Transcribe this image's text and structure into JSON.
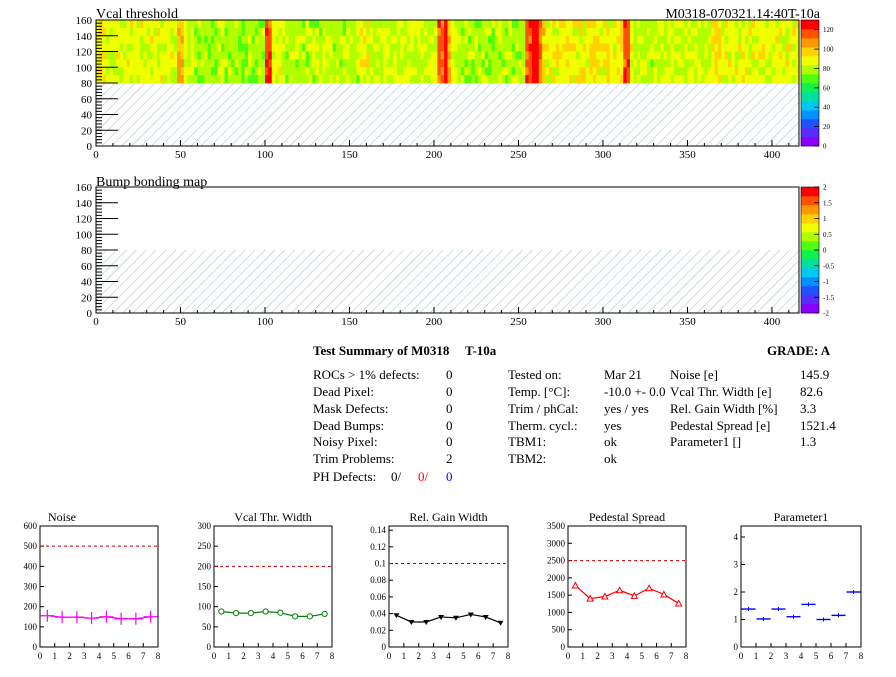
{
  "maps": [
    {
      "title": "Vcal threshold",
      "module_label": "M0318-070321.14:40T-10a",
      "x_ticks": [
        "0",
        "50",
        "100",
        "150",
        "200",
        "250",
        "300",
        "350",
        "400"
      ],
      "y_ticks": [
        "0",
        "20",
        "40",
        "60",
        "80",
        "100",
        "120",
        "140",
        "160"
      ],
      "z_ticks": [
        "0",
        "20",
        "40",
        "60",
        "80",
        "100",
        "120"
      ],
      "xlim": [
        0,
        416
      ],
      "ylim": [
        0,
        160
      ],
      "zlim": [
        0,
        130
      ],
      "filled_rows": [
        80,
        160
      ],
      "hatched_rows": [
        0,
        80
      ],
      "palette": [
        "#8a00ff",
        "#5a2cff",
        "#2050ff",
        "#0090ff",
        "#00c8f0",
        "#00e0a0",
        "#10f050",
        "#50ff10",
        "#b0ff00",
        "#f0ff00",
        "#ffd200",
        "#ff9800",
        "#ff5000",
        "#ff0000"
      ]
    },
    {
      "title": "Bump bonding map",
      "x_ticks": [
        "0",
        "50",
        "100",
        "150",
        "200",
        "250",
        "300",
        "350",
        "400"
      ],
      "y_ticks": [
        "0",
        "20",
        "40",
        "60",
        "80",
        "100",
        "120",
        "140",
        "160"
      ],
      "z_ticks": [
        "-2",
        "-1.5",
        "-1",
        "-0.5",
        "0",
        "0.5",
        "1",
        "1.5",
        "2"
      ],
      "xlim": [
        0,
        416
      ],
      "ylim": [
        0,
        160
      ],
      "zlim": [
        -2,
        2
      ],
      "hatched_rows": [
        0,
        80
      ]
    }
  ],
  "summary": {
    "title": "Test Summary of M0318",
    "temp_tag": "T-10a",
    "grade_label": "GRADE:  A",
    "defects": [
      {
        "label": "ROCs > 1% defects:",
        "value": "0"
      },
      {
        "label": "Dead Pixel:",
        "value": "0"
      },
      {
        "label": "Mask Defects:",
        "value": "0"
      },
      {
        "label": "Dead Bumps:",
        "value": "0"
      },
      {
        "label": "Noisy Pixel:",
        "value": "0"
      },
      {
        "label": "Trim Problems:",
        "value": "2"
      }
    ],
    "ph_defects": {
      "label": "PH Defects:",
      "v1": "0/",
      "v2": "0/",
      "v3": "0",
      "c2": "#ff0000",
      "c3": "#0000ff"
    },
    "tests": [
      {
        "label": "Tested on:",
        "value": "Mar 21"
      },
      {
        "label": "Temp. [°C]:",
        "value": "-10.0 +- 0.0"
      },
      {
        "label": "Trim / phCal:",
        "value": "yes / yes"
      },
      {
        "label": "Therm. cycl.:",
        "value": "yes"
      },
      {
        "label": "TBM1:",
        "value": "ok"
      },
      {
        "label": "TBM2:",
        "value": "ok"
      }
    ],
    "params": [
      {
        "label": "Noise [e]",
        "value": "145.9"
      },
      {
        "label": "Vcal Thr. Width [e]",
        "value": "82.6"
      },
      {
        "label": "Rel. Gain Width [%]",
        "value": "3.3"
      },
      {
        "label": "Pedestal Spread [e]",
        "value": "1521.4"
      },
      {
        "label": "Parameter1 []",
        "value": "1.3"
      }
    ]
  },
  "chart_data": [
    {
      "type": "line",
      "title": "Noise",
      "x": [
        0.5,
        1.5,
        2.5,
        3.5,
        4.5,
        5.5,
        6.5,
        7.5
      ],
      "values": [
        155,
        148,
        148,
        143,
        150,
        140,
        140,
        150
      ],
      "ylim": [
        0,
        600
      ],
      "yticks": [
        0,
        100,
        200,
        300,
        400,
        500,
        600
      ],
      "xticks": [
        0,
        1,
        2,
        3,
        4,
        5,
        6,
        7,
        8
      ],
      "xlim": [
        0,
        8
      ],
      "limit": 500,
      "color": "#ff00ff",
      "marker": "cross"
    },
    {
      "type": "line",
      "title": "Vcal Thr. Width",
      "x": [
        0.5,
        1.5,
        2.5,
        3.5,
        4.5,
        5.5,
        6.5,
        7.5
      ],
      "values": [
        88,
        84,
        84,
        88,
        85,
        76,
        76,
        82
      ],
      "ylim": [
        0,
        300
      ],
      "yticks": [
        0,
        50,
        100,
        150,
        200,
        250,
        300
      ],
      "xticks": [
        0,
        1,
        2,
        3,
        4,
        5,
        6,
        7,
        8
      ],
      "xlim": [
        0,
        8
      ],
      "limit": 200,
      "color": "#008000",
      "marker": "circle"
    },
    {
      "type": "line",
      "title": "Rel. Gain Width",
      "x": [
        0.5,
        1.5,
        2.5,
        3.5,
        4.5,
        5.5,
        6.5,
        7.5
      ],
      "values": [
        0.038,
        0.03,
        0.03,
        0.036,
        0.035,
        0.039,
        0.036,
        0.029
      ],
      "ylim": [
        0,
        0.145
      ],
      "yticks": [
        0,
        0.02,
        0.04,
        0.06,
        0.08,
        0.1,
        0.12,
        0.14
      ],
      "xticks": [
        0,
        1,
        2,
        3,
        4,
        5,
        6,
        7,
        8
      ],
      "xlim": [
        0,
        8
      ],
      "limit": 0.1,
      "color": "#000000",
      "marker": "triangle-down"
    },
    {
      "type": "line",
      "title": "Pedestal Spread",
      "x": [
        0.5,
        1.5,
        2.5,
        3.5,
        4.5,
        5.5,
        6.5,
        7.5
      ],
      "values": [
        1780,
        1400,
        1460,
        1640,
        1480,
        1700,
        1520,
        1260
      ],
      "ylim": [
        0,
        3500
      ],
      "yticks": [
        0,
        500,
        1000,
        1500,
        2000,
        2500,
        3000,
        3500
      ],
      "xticks": [
        0,
        1,
        2,
        3,
        4,
        5,
        6,
        7,
        8
      ],
      "xlim": [
        0,
        8
      ],
      "limit": 2500,
      "color": "#ff0000",
      "marker": "triangle-up"
    },
    {
      "type": "scatter",
      "title": "Parameter1",
      "x": [
        0.5,
        1.5,
        2.5,
        3.5,
        4.5,
        5.5,
        6.5,
        7.5
      ],
      "values": [
        1.38,
        1.02,
        1.38,
        1.1,
        1.55,
        1.0,
        1.15,
        2.0
      ],
      "ylim": [
        0,
        4.4
      ],
      "yticks": [
        0,
        1,
        2,
        3,
        4
      ],
      "xticks": [
        0,
        1,
        2,
        3,
        4,
        5,
        6,
        7,
        8
      ],
      "xlim": [
        0,
        8
      ],
      "color": "#0000ff",
      "marker": "hbar"
    }
  ]
}
